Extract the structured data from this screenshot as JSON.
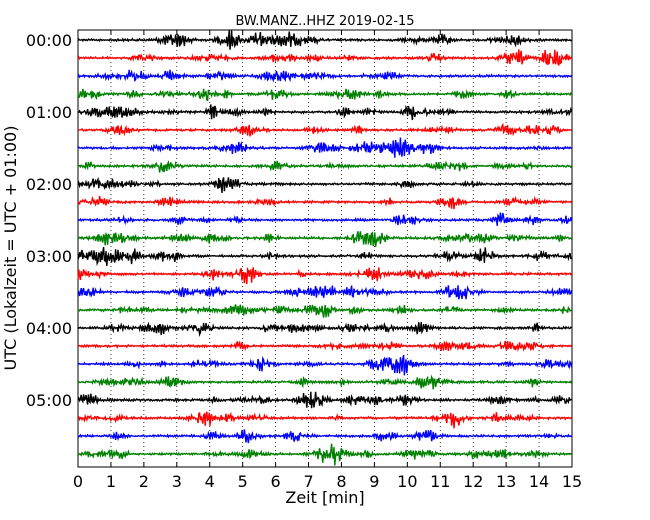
{
  "chart_data": {
    "type": "line",
    "title": "BW.MANZ..HHZ 2019-02-15",
    "xlabel": "Zeit  [min]",
    "ylabel": "UTC (Lokalzeit = UTC + 01:00)",
    "xlim": [
      0,
      15
    ],
    "x_ticks": [
      "0",
      "1",
      "2",
      "3",
      "4",
      "5",
      "6",
      "7",
      "8",
      "9",
      "10",
      "11",
      "12",
      "13",
      "14",
      "15"
    ],
    "y_tick_labels": [
      "00:00",
      "01:00",
      "02:00",
      "03:00",
      "04:00",
      "05:00"
    ],
    "rows": 24,
    "rows_per_label": 4,
    "trace_colors": [
      "#000000",
      "#ff0000",
      "#0000ff",
      "#008000"
    ],
    "grid": "vertical dotted at each minute",
    "legend": "none"
  }
}
